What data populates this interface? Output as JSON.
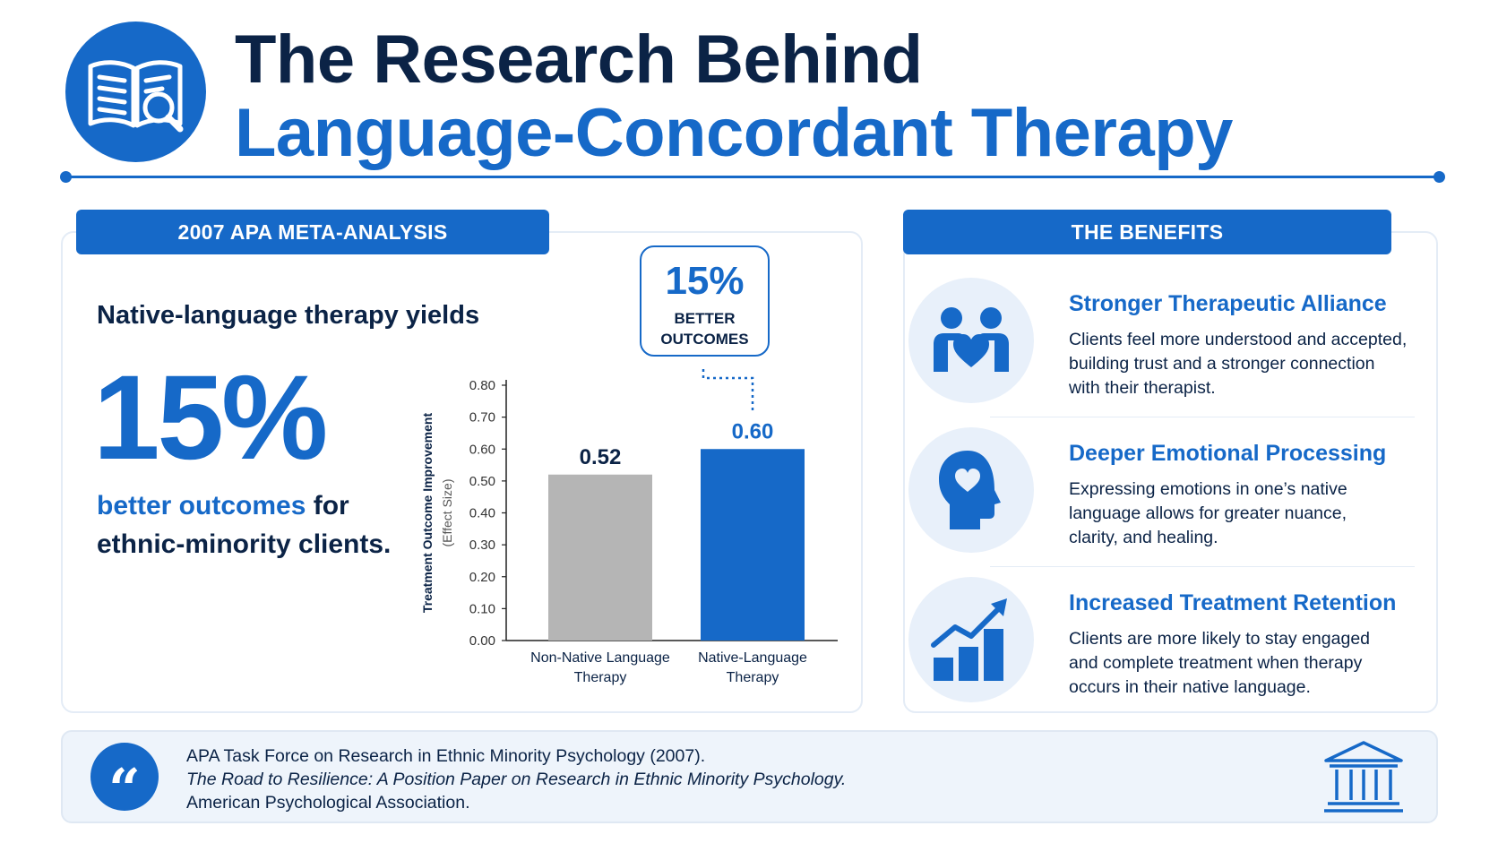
{
  "header": {
    "title_line1": "The Research Behind",
    "title_line2": "Language-Concordant Therapy",
    "logo_icon": "book-magnifier-icon"
  },
  "left_panel": {
    "tab_label": "2007 APA META-ANALYSIS",
    "yields_text": "Native-language therapy yields",
    "big_stat": "15%",
    "outcome_highlight": "better outcomes",
    "outcome_for": " for",
    "outcome_line2": "ethnic-minority clients.",
    "callout": {
      "percent": "15%",
      "line1": "BETTER",
      "line2": "OUTCOMES"
    }
  },
  "chart_data": {
    "type": "bar",
    "categories": [
      "Non-Native Language Therapy",
      "Native-Language Therapy"
    ],
    "category_lines": [
      [
        "Non-Native Language",
        "Therapy"
      ],
      [
        "Native-Language",
        "Therapy"
      ]
    ],
    "values": [
      0.52,
      0.6
    ],
    "value_labels": [
      "0.52",
      "0.60"
    ],
    "bar_colors": [
      "#b5b5b5",
      "#1669c8"
    ],
    "ylabel": "Treatment Outcome Improvement",
    "ylabel_sub": "(Effect Size)",
    "ylim": [
      0,
      0.8
    ],
    "yticks": [
      "0.00",
      "0.10",
      "0.20",
      "0.30",
      "0.40",
      "0.50",
      "0.60",
      "0.70",
      "0.80"
    ],
    "grid": false
  },
  "right_panel": {
    "tab_label": "THE BENEFITS",
    "benefits": [
      {
        "title": "Stronger Therapeutic Alliance",
        "lines": [
          "Clients feel more understood and accepted,",
          "building trust and a stronger connection",
          "with their therapist."
        ],
        "icon": "people-heart-icon"
      },
      {
        "title": "Deeper Emotional Processing",
        "lines": [
          "Expressing emotions in one’s native",
          "language allows for greater nuance,",
          "clarity, and healing."
        ],
        "icon": "head-heart-icon"
      },
      {
        "title": "Increased Treatment Retention",
        "lines": [
          "Clients are more likely to stay engaged",
          "and complete treatment when therapy",
          "occurs in their native language."
        ],
        "icon": "growth-chart-icon"
      }
    ]
  },
  "footer": {
    "quote_glyph": "“",
    "citation_line1": "APA Task Force on Research in Ethnic Minority Psychology (2007).",
    "citation_line2": "The Road to Resilience: A Position Paper on Research in Ethnic Minority Psychology.",
    "citation_line3": "American Psychological Association.",
    "building_icon": "institution-building-icon"
  },
  "colors": {
    "primary": "#1669c8",
    "navy": "#0b2346",
    "grey_bar": "#b5b5b5",
    "soft_blue": "#e8f0fa"
  }
}
